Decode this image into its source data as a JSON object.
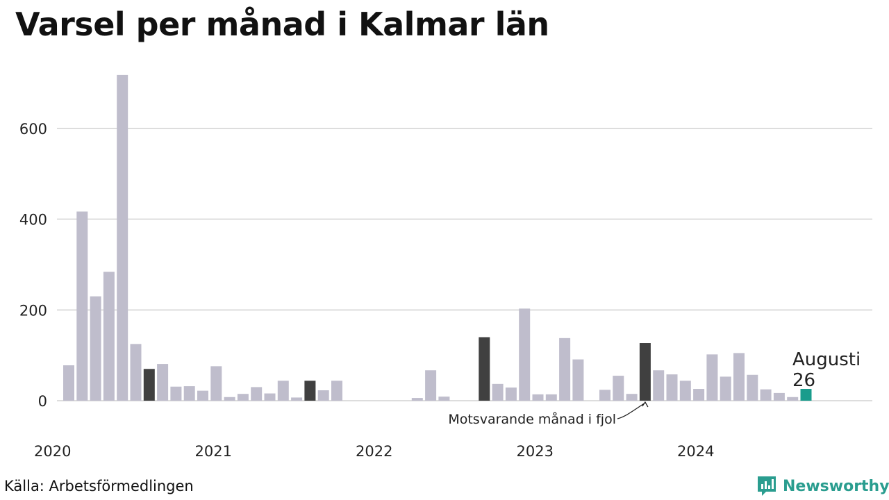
{
  "title": "Varsel per månad i Kalmar län",
  "source": "Källa: Arbetsförmedlingen",
  "brand": {
    "name": "Newsworthy",
    "icon": "newsworthy-logo-icon"
  },
  "colors": {
    "bar": "#bfbdcc",
    "comparison": "#404040",
    "highlight": "#1a9c8c",
    "grid": "#dddddd"
  },
  "chart_data": {
    "type": "bar",
    "title": "Varsel per månad i Kalmar län",
    "xlabel": "",
    "ylabel": "",
    "ylim": [
      0,
      720
    ],
    "y_ticks": [
      0,
      200,
      400,
      600
    ],
    "x_ticks": [
      "2020",
      "2021",
      "2022",
      "2023",
      "2024"
    ],
    "grid": true,
    "start": "2020-01",
    "values": [
      78,
      417,
      230,
      284,
      718,
      125,
      70,
      81,
      31,
      32,
      22,
      76,
      8,
      15,
      30,
      16,
      44,
      7,
      44,
      23,
      44,
      0,
      0,
      0,
      0,
      0,
      6,
      67,
      9,
      0,
      0,
      140,
      37,
      29,
      203,
      14,
      14,
      138,
      91,
      0,
      24,
      55,
      15,
      127,
      67,
      58,
      44,
      26,
      102,
      53,
      105,
      57,
      25,
      17,
      8,
      26
    ],
    "comparison_indices": [
      6,
      18,
      31,
      43
    ],
    "highlight_index": 55,
    "annotations": {
      "highlight_month": "Augusti",
      "highlight_value": "26",
      "comparison_label": "Motsvarande månad i fjol"
    }
  }
}
